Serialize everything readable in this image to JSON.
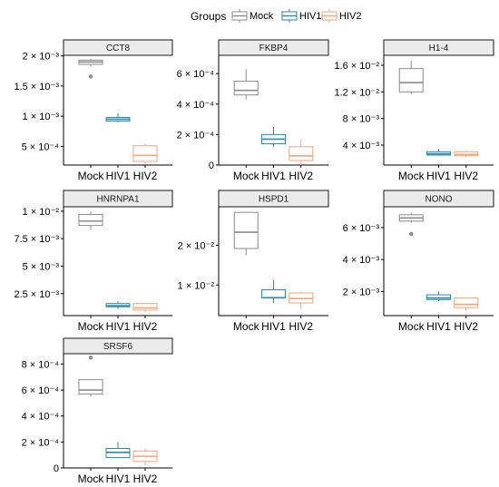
{
  "legend": {
    "title": "Groups",
    "items": [
      {
        "label": "Mock",
        "color": "#8c8c8c"
      },
      {
        "label": "HIV1",
        "color": "#2a8ab4"
      },
      {
        "label": "HIV2",
        "color": "#f4a57a"
      }
    ]
  },
  "chart_data": [
    {
      "type": "box",
      "title": "CCT8",
      "categories": [
        "Mock",
        "HIV1",
        "HIV2"
      ],
      "ylim": [
        0.00019,
        0.00201
      ],
      "yticks": [
        {
          "value": 0.0005,
          "label": "5 × 10⁻⁴"
        },
        {
          "value": 0.001,
          "label": "1 × 10⁻³"
        },
        {
          "value": 0.0015,
          "label": "1.5 × 10⁻³"
        },
        {
          "value": 0.002,
          "label": "2 × 10⁻³"
        }
      ],
      "boxes": [
        {
          "min": 0.00182,
          "q1": 0.00186,
          "median": 0.0019,
          "q3": 0.00193,
          "max": 0.00195,
          "outliers": [
            0.00166
          ]
        },
        {
          "min": 0.0009,
          "q1": 0.00092,
          "median": 0.00095,
          "q3": 0.00098,
          "max": 0.00105,
          "outliers": []
        },
        {
          "min": 0.00021,
          "q1": 0.00025,
          "median": 0.00035,
          "q3": 0.00051,
          "max": 0.00055,
          "outliers": []
        }
      ]
    },
    {
      "type": "box",
      "title": "FKBP4",
      "categories": [
        "Mock",
        "HIV1",
        "HIV2"
      ],
      "ylim": [
        0.0,
        0.00072
      ],
      "yticks": [
        {
          "value": 0.0,
          "label": "0"
        },
        {
          "value": 0.0002,
          "label": "2 × 10⁻⁴"
        },
        {
          "value": 0.0004,
          "label": "4 × 10⁻⁴"
        },
        {
          "value": 0.0006,
          "label": "6 × 10⁻⁴"
        }
      ],
      "boxes": [
        {
          "min": 0.00043,
          "q1": 0.00046,
          "median": 0.00049,
          "q3": 0.00055,
          "max": 0.00063,
          "outliers": []
        },
        {
          "min": 0.00012,
          "q1": 0.00014,
          "median": 0.00017,
          "q3": 0.0002,
          "max": 0.00025,
          "outliers": []
        },
        {
          "min": 0.0,
          "q1": 3e-05,
          "median": 6e-05,
          "q3": 0.00012,
          "max": 0.00017,
          "outliers": []
        }
      ]
    },
    {
      "type": "box",
      "title": "H1-4",
      "categories": [
        "Mock",
        "HIV1",
        "HIV2"
      ],
      "ylim": [
        0.001,
        0.0175
      ],
      "yticks": [
        {
          "value": 0.004,
          "label": "4 × 10⁻³"
        },
        {
          "value": 0.008,
          "label": "8 × 10⁻³"
        },
        {
          "value": 0.012,
          "label": "1.2 × 10⁻²"
        },
        {
          "value": 0.016,
          "label": "1.6 × 10⁻²"
        }
      ],
      "boxes": [
        {
          "min": 0.0117,
          "q1": 0.012,
          "median": 0.0134,
          "q3": 0.0155,
          "max": 0.0167,
          "outliers": []
        },
        {
          "min": 0.0024,
          "q1": 0.0025,
          "median": 0.0027,
          "q3": 0.003,
          "max": 0.0034,
          "outliers": []
        },
        {
          "min": 0.0022,
          "q1": 0.0024,
          "median": 0.0026,
          "q3": 0.003,
          "max": 0.0032,
          "outliers": []
        }
      ]
    },
    {
      "type": "box",
      "title": "HNRNPA1",
      "categories": [
        "Mock",
        "HIV1",
        "HIV2"
      ],
      "ylim": [
        0.0005,
        0.0104
      ],
      "yticks": [
        {
          "value": 0.0025,
          "label": "2.5 × 10⁻³"
        },
        {
          "value": 0.005,
          "label": "5 × 10⁻³"
        },
        {
          "value": 0.0075,
          "label": "7.5 × 10⁻³"
        },
        {
          "value": 0.01,
          "label": "1 × 10⁻²"
        }
      ],
      "boxes": [
        {
          "min": 0.0083,
          "q1": 0.0087,
          "median": 0.0091,
          "q3": 0.0097,
          "max": 0.01,
          "outliers": []
        },
        {
          "min": 0.0011,
          "q1": 0.0013,
          "median": 0.0014,
          "q3": 0.0016,
          "max": 0.0018,
          "outliers": []
        },
        {
          "min": 0.0008,
          "q1": 0.001,
          "median": 0.0012,
          "q3": 0.0016,
          "max": 0.0016,
          "outliers": []
        }
      ]
    },
    {
      "type": "box",
      "title": "HSPD1",
      "categories": [
        "Mock",
        "HIV1",
        "HIV2"
      ],
      "ylim": [
        0.0023,
        0.0297
      ],
      "yticks": [
        {
          "value": 0.01,
          "label": "1 × 10⁻²"
        },
        {
          "value": 0.02,
          "label": "2 × 10⁻²"
        }
      ],
      "boxes": [
        {
          "min": 0.0175,
          "q1": 0.0192,
          "median": 0.0233,
          "q3": 0.0283,
          "max": 0.0283,
          "outliers": []
        },
        {
          "min": 0.0055,
          "q1": 0.0068,
          "median": 0.0068,
          "q3": 0.0088,
          "max": 0.0113,
          "outliers": []
        },
        {
          "min": 0.004,
          "q1": 0.0055,
          "median": 0.0066,
          "q3": 0.008,
          "max": 0.0083,
          "outliers": []
        }
      ]
    },
    {
      "type": "box",
      "title": "NONO",
      "categories": [
        "Mock",
        "HIV1",
        "HIV2"
      ],
      "ylim": [
        0.0005,
        0.0073
      ],
      "yticks": [
        {
          "value": 0.002,
          "label": "2 × 10⁻³"
        },
        {
          "value": 0.004,
          "label": "4 × 10⁻³"
        },
        {
          "value": 0.006,
          "label": "6 × 10⁻³"
        }
      ],
      "boxes": [
        {
          "min": 0.0063,
          "q1": 0.0064,
          "median": 0.0066,
          "q3": 0.0068,
          "max": 0.0069,
          "outliers": [
            0.0056
          ]
        },
        {
          "min": 0.0014,
          "q1": 0.0015,
          "median": 0.0016,
          "q3": 0.0018,
          "max": 0.002,
          "outliers": []
        },
        {
          "min": 0.0008,
          "q1": 0.001,
          "median": 0.0012,
          "q3": 0.0016,
          "max": 0.0016,
          "outliers": []
        }
      ]
    },
    {
      "type": "box",
      "title": "SRSF6",
      "categories": [
        "Mock",
        "HIV1",
        "HIV2"
      ],
      "ylim": [
        0.0,
        0.00088
      ],
      "yticks": [
        {
          "value": 0.0,
          "label": "0"
        },
        {
          "value": 0.0002,
          "label": "2 × 10⁻⁴"
        },
        {
          "value": 0.0004,
          "label": "4 × 10⁻⁴"
        },
        {
          "value": 0.0006,
          "label": "6 × 10⁻⁴"
        },
        {
          "value": 0.0008,
          "label": "8 × 10⁻⁴"
        }
      ],
      "boxes": [
        {
          "min": 0.00055,
          "q1": 0.00057,
          "median": 0.0006,
          "q3": 0.00068,
          "max": 0.00068,
          "outliers": [
            0.00085
          ]
        },
        {
          "min": 8e-05,
          "q1": 8e-05,
          "median": 0.00012,
          "q3": 0.00015,
          "max": 0.0002,
          "outliers": []
        },
        {
          "min": 2e-05,
          "q1": 5e-05,
          "median": 9e-05,
          "q3": 0.00013,
          "max": 0.00015,
          "outliers": []
        }
      ]
    }
  ]
}
